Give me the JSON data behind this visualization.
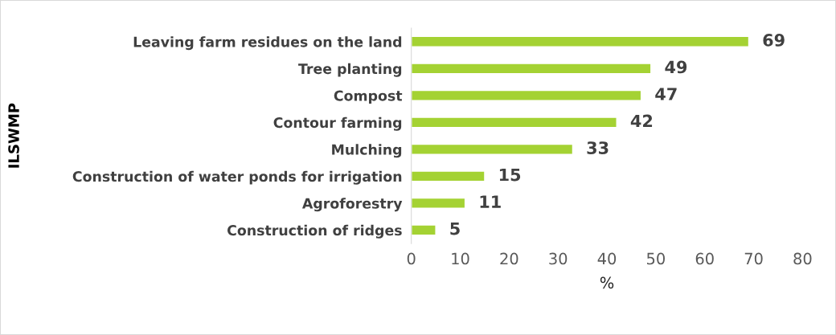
{
  "chart_data": {
    "type": "bar",
    "orientation": "horizontal",
    "xlabel": "%",
    "ylabel": "ILSWMP",
    "categories": [
      "Leaving farm residues on the land",
      "Tree planting",
      "Compost",
      "Contour farming",
      "Mulching",
      "Construction of water ponds for irrigation",
      "Agroforestry",
      "Construction of ridges"
    ],
    "values": [
      69,
      49,
      47,
      42,
      33,
      15,
      11,
      5
    ],
    "color": "#a4d233",
    "xlim": [
      0,
      80
    ],
    "xticks": [
      0,
      10,
      20,
      30,
      40,
      50,
      60,
      70,
      80
    ],
    "data_labels": true,
    "grid": false,
    "legend": false
  }
}
